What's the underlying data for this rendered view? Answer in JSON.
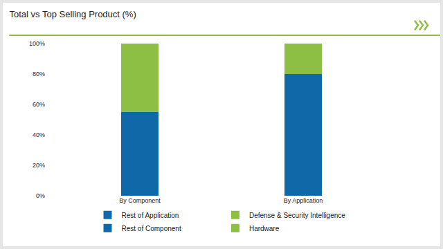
{
  "chart_data": {
    "type": "bar",
    "title": "Total vs Top Selling Product (%)",
    "categories": [
      "By Component",
      "By Application"
    ],
    "series": [
      {
        "name": "Rest of Application",
        "color": "#0f69a8",
        "values": [
          null,
          80
        ]
      },
      {
        "name": "Defense & Security Intelligence",
        "color": "#8dbf44",
        "values": [
          null,
          20
        ]
      },
      {
        "name": "Rest of Component",
        "color": "#0f69a8",
        "values": [
          55,
          null
        ]
      },
      {
        "name": "Hardware",
        "color": "#8dbf44",
        "values": [
          45,
          null
        ]
      }
    ],
    "ylim": [
      0,
      100
    ],
    "yticks": [
      {
        "value": 0,
        "label": "0%"
      },
      {
        "value": 20,
        "label": "20%"
      },
      {
        "value": 40,
        "label": "40%"
      },
      {
        "value": 60,
        "label": "60%"
      },
      {
        "value": 80,
        "label": "80%"
      },
      {
        "value": 100,
        "label": "100%"
      }
    ],
    "stacked": true,
    "grid": false,
    "legend": "bottom"
  }
}
